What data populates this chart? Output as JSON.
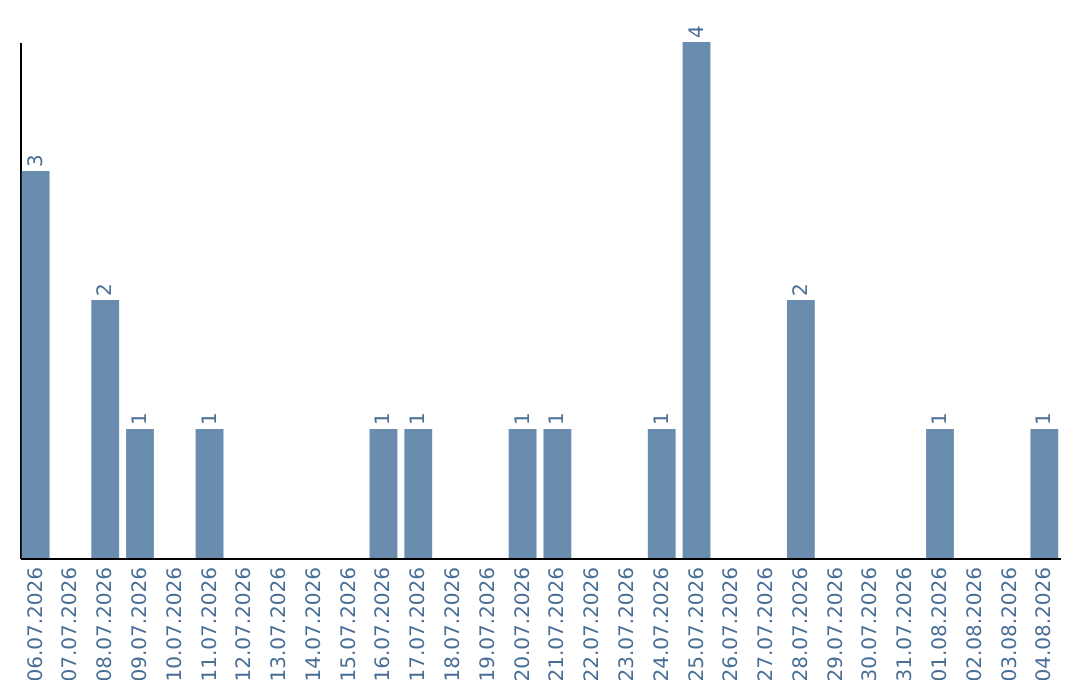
{
  "chart_data": {
    "type": "bar",
    "categories": [
      "06.07.2026",
      "07.07.2026",
      "08.07.2026",
      "09.07.2026",
      "10.07.2026",
      "11.07.2026",
      "12.07.2026",
      "13.07.2026",
      "14.07.2026",
      "15.07.2026",
      "16.07.2026",
      "17.07.2026",
      "18.07.2026",
      "19.07.2026",
      "20.07.2026",
      "21.07.2026",
      "22.07.2026",
      "23.07.2026",
      "24.07.2026",
      "25.07.2026",
      "26.07.2026",
      "27.07.2026",
      "28.07.2026",
      "29.07.2026",
      "30.07.2026",
      "31.07.2026",
      "01.08.2026",
      "02.08.2026",
      "03.08.2026",
      "04.08.2026"
    ],
    "values": [
      3,
      0,
      2,
      1,
      0,
      1,
      0,
      0,
      0,
      0,
      1,
      1,
      0,
      0,
      1,
      1,
      0,
      0,
      1,
      4,
      0,
      0,
      2,
      0,
      0,
      0,
      1,
      0,
      0,
      1
    ],
    "value_labels": [
      "3",
      null,
      "2",
      "1",
      null,
      "1",
      null,
      null,
      null,
      null,
      "1",
      "1",
      null,
      null,
      "1",
      "1",
      null,
      null,
      "1",
      "4",
      null,
      null,
      "2",
      null,
      null,
      null,
      "1",
      null,
      null,
      "1"
    ],
    "color": "#6a8caf",
    "grid": false,
    "tick_labels": "x"
  }
}
